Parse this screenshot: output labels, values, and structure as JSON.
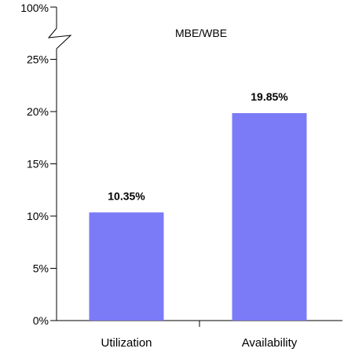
{
  "chart_data": {
    "type": "bar",
    "title": "MBE/WBE",
    "xlabel": "",
    "ylabel": "",
    "categories": [
      "Utilization",
      "Availability"
    ],
    "values": [
      10.35,
      19.85
    ],
    "data_labels": [
      "10.35%",
      "19.85%"
    ],
    "ylim": [
      0,
      27
    ],
    "y_axis_break": true,
    "y_ticks": [
      0,
      5,
      10,
      15,
      20,
      25
    ],
    "y_tick_labels": [
      "0%",
      "5%",
      "10%",
      "15%",
      "20%",
      "25%"
    ],
    "y_break_top_label": "100%",
    "bar_color": "#7B7BF7",
    "grid": false,
    "legend": "none"
  }
}
